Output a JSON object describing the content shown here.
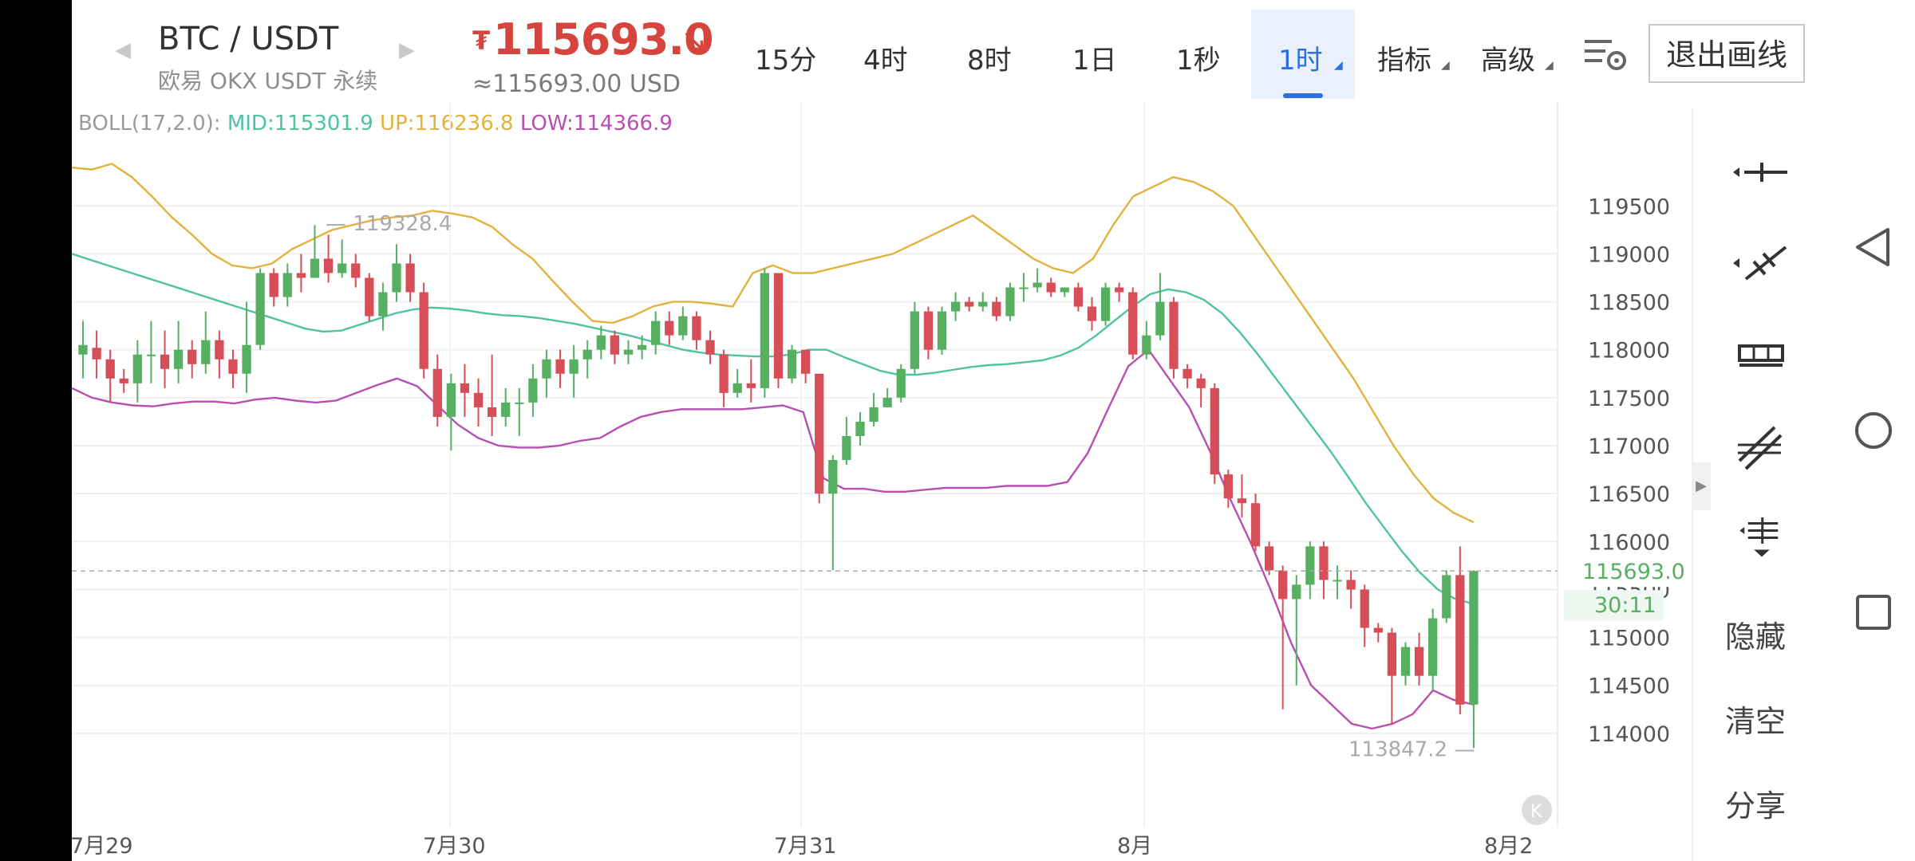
{
  "header": {
    "pair": "BTC / USDT",
    "exchange": "欧易 OKX USDT 永续",
    "price_symbol": "₮",
    "price": "115693.0",
    "price_arrow": "↘",
    "price_usd": "≈115693.00 USD",
    "timeframes": [
      "15分",
      "4时",
      "8时",
      "1日",
      "1秒"
    ],
    "active_timeframe": "1时",
    "indicators_label": "指标",
    "advanced_label": "高级",
    "exit_drawing": "退出画线"
  },
  "boll": {
    "label": "BOLL(17,2.0):",
    "mid": "MID:115301.9",
    "up": "UP:116236.8",
    "low": "LOW:114366.9",
    "colors": {
      "label": "#9a9a9a",
      "mid": "#4fc2a3",
      "up": "#e3b23e",
      "low": "#b84fb0"
    }
  },
  "chart_data": {
    "type": "candlestick",
    "y_ticks": [
      "119500",
      "119000",
      "118500",
      "118000",
      "117500",
      "117000",
      "116500",
      "116000",
      "115500",
      "115000",
      "114500",
      "114000"
    ],
    "x_labels": [
      "7月29",
      "7月30",
      "7月31",
      "8月",
      "8月2"
    ],
    "current_price": "115693.0",
    "countdown": "30:11",
    "high_marker": "119328.4",
    "low_marker": "113847.2",
    "ylim": [
      113600,
      120500
    ],
    "colors": {
      "up": "#57b062",
      "down": "#d64e57"
    },
    "candles": [
      [
        117950,
        118050,
        117700,
        118300
      ],
      [
        118020,
        117900,
        117700,
        118200
      ],
      [
        117900,
        117700,
        117450,
        118000
      ],
      [
        117700,
        117650,
        117550,
        117800
      ],
      [
        117650,
        117950,
        117450,
        118100
      ],
      [
        117950,
        117950,
        117650,
        118300
      ],
      [
        117950,
        117800,
        117600,
        118200
      ],
      [
        117800,
        118000,
        117650,
        118300
      ],
      [
        118000,
        117850,
        117700,
        118100
      ],
      [
        117850,
        118100,
        117750,
        118400
      ],
      [
        118100,
        117900,
        117700,
        118200
      ],
      [
        117900,
        117750,
        117600,
        118000
      ],
      [
        117750,
        118050,
        117550,
        118500
      ],
      [
        118050,
        118800,
        118000,
        118850
      ],
      [
        118800,
        118550,
        118450,
        118850
      ],
      [
        118550,
        118800,
        118450,
        118900
      ],
      [
        118800,
        118750,
        118600,
        119000
      ],
      [
        118750,
        118950,
        118750,
        119300
      ],
      [
        118950,
        118800,
        118700,
        119200
      ],
      [
        118800,
        118900,
        118750,
        119150
      ],
      [
        118900,
        118750,
        118650,
        119000
      ],
      [
        118750,
        118350,
        118300,
        118800
      ],
      [
        118350,
        118600,
        118200,
        118700
      ],
      [
        118600,
        118900,
        118500,
        119100
      ],
      [
        118900,
        118600,
        118500,
        119000
      ],
      [
        118600,
        117800,
        117700,
        118700
      ],
      [
        117800,
        117300,
        117200,
        117950
      ],
      [
        117300,
        117650,
        116950,
        117750
      ],
      [
        117650,
        117550,
        117300,
        117850
      ],
      [
        117550,
        117400,
        117200,
        117700
      ],
      [
        117400,
        117300,
        117100,
        117950
      ],
      [
        117300,
        117450,
        117200,
        117600
      ],
      [
        117450,
        117450,
        117100,
        117600
      ],
      [
        117450,
        117700,
        117300,
        117850
      ],
      [
        117700,
        117900,
        117500,
        118000
      ],
      [
        117900,
        117750,
        117600,
        118000
      ],
      [
        117750,
        117900,
        117500,
        118050
      ],
      [
        117900,
        118000,
        117700,
        118100
      ],
      [
        118000,
        118150,
        117900,
        118250
      ],
      [
        118150,
        117950,
        117850,
        118200
      ],
      [
        117950,
        118000,
        117850,
        118100
      ],
      [
        118000,
        118050,
        117900,
        118150
      ],
      [
        118050,
        118300,
        117950,
        118400
      ],
      [
        118300,
        118150,
        118050,
        118400
      ],
      [
        118150,
        118350,
        118100,
        118450
      ],
      [
        118350,
        118100,
        118000,
        118400
      ],
      [
        118100,
        117950,
        117850,
        118200
      ],
      [
        117950,
        117550,
        117400,
        118000
      ],
      [
        117550,
        117650,
        117500,
        117800
      ],
      [
        117650,
        117600,
        117450,
        117900
      ],
      [
        117600,
        118800,
        117500,
        118850
      ],
      [
        118800,
        117700,
        117600,
        118800
      ],
      [
        117700,
        118000,
        117650,
        118050
      ],
      [
        118000,
        117750,
        117650,
        118000
      ],
      [
        117750,
        116500,
        116400,
        117700
      ],
      [
        116500,
        116850,
        115700,
        116900
      ],
      [
        116850,
        117100,
        116800,
        117300
      ],
      [
        117100,
        117250,
        117000,
        117350
      ],
      [
        117250,
        117400,
        117200,
        117550
      ],
      [
        117400,
        117500,
        117400,
        117600
      ],
      [
        117500,
        117800,
        117450,
        117850
      ],
      [
        117800,
        118400,
        117750,
        118500
      ],
      [
        118400,
        118000,
        117900,
        118450
      ],
      [
        118000,
        118400,
        117950,
        118450
      ],
      [
        118400,
        118500,
        118300,
        118600
      ],
      [
        118500,
        118450,
        118400,
        118550
      ],
      [
        118450,
        118500,
        118400,
        118600
      ],
      [
        118500,
        118350,
        118300,
        118550
      ],
      [
        118350,
        118650,
        118300,
        118700
      ],
      [
        118650,
        118650,
        118500,
        118800
      ],
      [
        118650,
        118700,
        118600,
        118850
      ],
      [
        118700,
        118600,
        118550,
        118750
      ],
      [
        118600,
        118650,
        118550,
        118650
      ],
      [
        118650,
        118450,
        118400,
        118700
      ],
      [
        118450,
        118300,
        118200,
        118550
      ],
      [
        118300,
        118650,
        118250,
        118700
      ],
      [
        118650,
        118600,
        118500,
        118700
      ],
      [
        118600,
        117950,
        117900,
        118650
      ],
      [
        117950,
        118150,
        117900,
        118300
      ],
      [
        118150,
        118500,
        118100,
        118800
      ],
      [
        118500,
        117800,
        117700,
        118550
      ],
      [
        117800,
        117700,
        117600,
        117850
      ],
      [
        117700,
        117600,
        117400,
        117750
      ],
      [
        117600,
        116700,
        116600,
        117650
      ],
      [
        116700,
        116450,
        116350,
        116750
      ],
      [
        116450,
        116400,
        116250,
        116700
      ],
      [
        116400,
        115950,
        115900,
        116500
      ],
      [
        115950,
        115700,
        115650,
        116000
      ],
      [
        115700,
        115400,
        114250,
        115750
      ],
      [
        115400,
        115550,
        114500,
        115650
      ],
      [
        115550,
        115950,
        115400,
        116000
      ],
      [
        115950,
        115600,
        115400,
        116000
      ],
      [
        115600,
        115600,
        115400,
        115750
      ],
      [
        115600,
        115500,
        115300,
        115700
      ],
      [
        115500,
        115100,
        114900,
        115550
      ],
      [
        115100,
        115050,
        114950,
        115150
      ],
      [
        115050,
        114600,
        114100,
        115100
      ],
      [
        114600,
        114900,
        114500,
        114950
      ],
      [
        114900,
        114600,
        114500,
        115050
      ],
      [
        114600,
        115200,
        114450,
        115300
      ],
      [
        115200,
        115650,
        115150,
        115700
      ],
      [
        115650,
        114300,
        114200,
        115950
      ],
      [
        114300,
        115693,
        113847,
        115700
      ]
    ],
    "boll_up": [
      119900,
      119880,
      119940,
      119800,
      119600,
      119380,
      119200,
      119000,
      118880,
      118850,
      118900,
      119050,
      119150,
      119250,
      119300,
      119350,
      119380,
      119400,
      119450,
      119420,
      119380,
      119280,
      119100,
      118950,
      118720,
      118500,
      118300,
      118280,
      118350,
      118450,
      118500,
      118500,
      118480,
      118450,
      118800,
      118880,
      118800,
      118800,
      118850,
      118900,
      118950,
      119000,
      119100,
      119200,
      119300,
      119400,
      119250,
      119100,
      118950,
      118850,
      118800,
      118950,
      119300,
      119600,
      119700,
      119800,
      119750,
      119650,
      119500,
      119200,
      118900,
      118600,
      118300,
      118000,
      117700,
      117350,
      117000,
      116700,
      116450,
      116300,
      116200
    ],
    "boll_mid": [
      119000,
      118940,
      118880,
      118820,
      118760,
      118700,
      118640,
      118580,
      118520,
      118460,
      118400,
      118340,
      118280,
      118220,
      118190,
      118200,
      118260,
      118320,
      118380,
      118420,
      118440,
      118430,
      118410,
      118380,
      118360,
      118350,
      118330,
      118300,
      118270,
      118230,
      118190,
      118150,
      118100,
      118050,
      118000,
      117970,
      117950,
      117940,
      117930,
      117930,
      117950,
      118000,
      118000,
      117920,
      117850,
      117780,
      117740,
      117740,
      117760,
      117790,
      117820,
      117840,
      117850,
      117870,
      117890,
      117940,
      118020,
      118150,
      118300,
      118450,
      118580,
      118630,
      118600,
      118520,
      118380,
      118180,
      117950,
      117700,
      117450,
      117200,
      116950,
      116680,
      116400,
      116150,
      115900,
      115680,
      115500,
      115400,
      115350
    ],
    "boll_low": [
      117600,
      117500,
      117450,
      117420,
      117410,
      117440,
      117460,
      117460,
      117440,
      117480,
      117500,
      117470,
      117450,
      117470,
      117550,
      117630,
      117700,
      117620,
      117420,
      117220,
      117080,
      117000,
      116980,
      116980,
      117000,
      117050,
      117080,
      117200,
      117300,
      117350,
      117380,
      117380,
      117380,
      117380,
      117400,
      117420,
      117350,
      116660,
      116550,
      116550,
      116520,
      116520,
      116540,
      116560,
      116560,
      116560,
      116580,
      116580,
      116580,
      116620,
      116920,
      117380,
      117830,
      118000,
      117700,
      117400,
      116950,
      116450,
      116000,
      115500,
      114950,
      114500,
      114300,
      114100,
      114050,
      114100,
      114200,
      114450,
      114350,
      114300
    ]
  },
  "toolbar": {
    "hide": "隐藏",
    "clear": "清空",
    "share": "分享"
  }
}
